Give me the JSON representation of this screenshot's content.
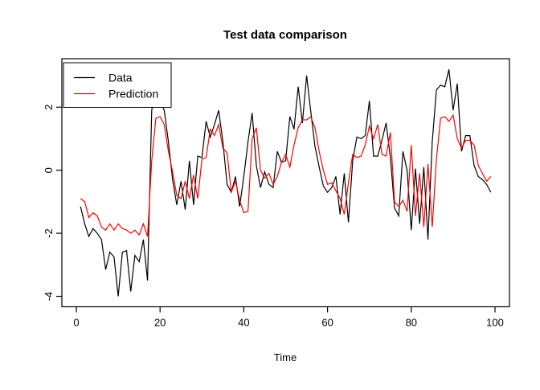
{
  "title": "Test data comparison",
  "axes": {
    "x_label": "Time",
    "x_ticks": [
      0,
      20,
      40,
      60,
      80,
      100
    ],
    "y_ticks": [
      -4,
      -2,
      0,
      2
    ],
    "x_range": [
      0,
      100
    ],
    "y_range": [
      -4.3,
      3.5
    ]
  },
  "legend": {
    "items": [
      {
        "label": "Data",
        "color": "#000000"
      },
      {
        "label": "Prediction",
        "color": "#ff0000"
      }
    ]
  },
  "chart_data": {
    "type": "line",
    "title": "Test data comparison",
    "xlabel": "Time",
    "ylabel": "",
    "x_start": 1,
    "x_step": 1,
    "xlim": [
      0,
      100
    ],
    "ylim": [
      -4.3,
      3.5
    ],
    "grid": false,
    "legend_position": "topleft",
    "series": [
      {
        "name": "Data",
        "color": "#000000",
        "values": [
          -1.15,
          -1.7,
          -2.1,
          -1.85,
          -2.0,
          -2.2,
          -3.15,
          -2.6,
          -2.75,
          -4.0,
          -2.6,
          -2.55,
          -3.85,
          -2.7,
          -2.9,
          -2.2,
          -3.5,
          1.9,
          2.6,
          2.2,
          1.9,
          0.9,
          -0.3,
          -1.1,
          -0.35,
          -1.25,
          0.3,
          -1.1,
          0.45,
          0.4,
          1.55,
          1.05,
          1.45,
          1.9,
          0.9,
          -0.45,
          -0.7,
          -0.2,
          -1.15,
          -0.2,
          0.9,
          1.82,
          0.15,
          -0.55,
          -0.05,
          -0.45,
          -0.55,
          0.6,
          0.25,
          0.3,
          1.7,
          1.3,
          2.65,
          1.5,
          3.0,
          1.85,
          0.75,
          0.1,
          -0.5,
          -0.7,
          -0.55,
          -0.2,
          -1.4,
          -0.1,
          -1.65,
          0.3,
          1.05,
          1.0,
          1.1,
          2.2,
          0.45,
          0.45,
          0.95,
          1.5,
          0.4,
          -1.2,
          -1.45,
          0.6,
          0.0,
          -1.9,
          0.05,
          -1.7,
          0.1,
          -2.2,
          0.9,
          2.55,
          2.7,
          2.65,
          3.2,
          1.9,
          2.75,
          0.6,
          1.1,
          1.1,
          0.15,
          -0.2,
          -0.3,
          -0.45,
          -0.7
        ]
      },
      {
        "name": "Prediction",
        "color": "#ff0000",
        "values": [
          -0.9,
          -1.0,
          -1.5,
          -1.35,
          -1.45,
          -1.8,
          -1.9,
          -1.7,
          -1.9,
          -1.7,
          -1.85,
          -1.9,
          -2.0,
          -1.9,
          -2.05,
          -1.7,
          -2.1,
          0.3,
          1.65,
          1.7,
          1.45,
          0.6,
          -0.05,
          -0.8,
          -0.9,
          -0.35,
          -0.9,
          -0.15,
          -0.9,
          0.35,
          0.4,
          1.3,
          1.1,
          1.45,
          0.7,
          0.55,
          -0.7,
          -0.35,
          -0.95,
          -1.35,
          -1.3,
          1.0,
          1.35,
          0.0,
          -0.25,
          -0.1,
          -0.45,
          -0.2,
          0.25,
          0.5,
          0.1,
          0.8,
          1.35,
          1.6,
          1.6,
          1.7,
          1.35,
          0.6,
          0.0,
          -0.45,
          -0.4,
          -0.65,
          -0.9,
          -1.4,
          -0.4,
          0.5,
          0.4,
          0.45,
          0.8,
          1.4,
          1.0,
          1.45,
          0.5,
          0.45,
          1.2,
          -1.0,
          -1.15,
          -0.95,
          -1.3,
          0.8,
          -1.45,
          -0.1,
          -1.8,
          0.2,
          -1.8,
          0.35,
          1.65,
          1.7,
          1.55,
          1.75,
          1.0,
          0.7,
          0.95,
          0.95,
          0.8,
          0.15,
          -0.1,
          -0.35,
          -0.2
        ]
      }
    ]
  }
}
